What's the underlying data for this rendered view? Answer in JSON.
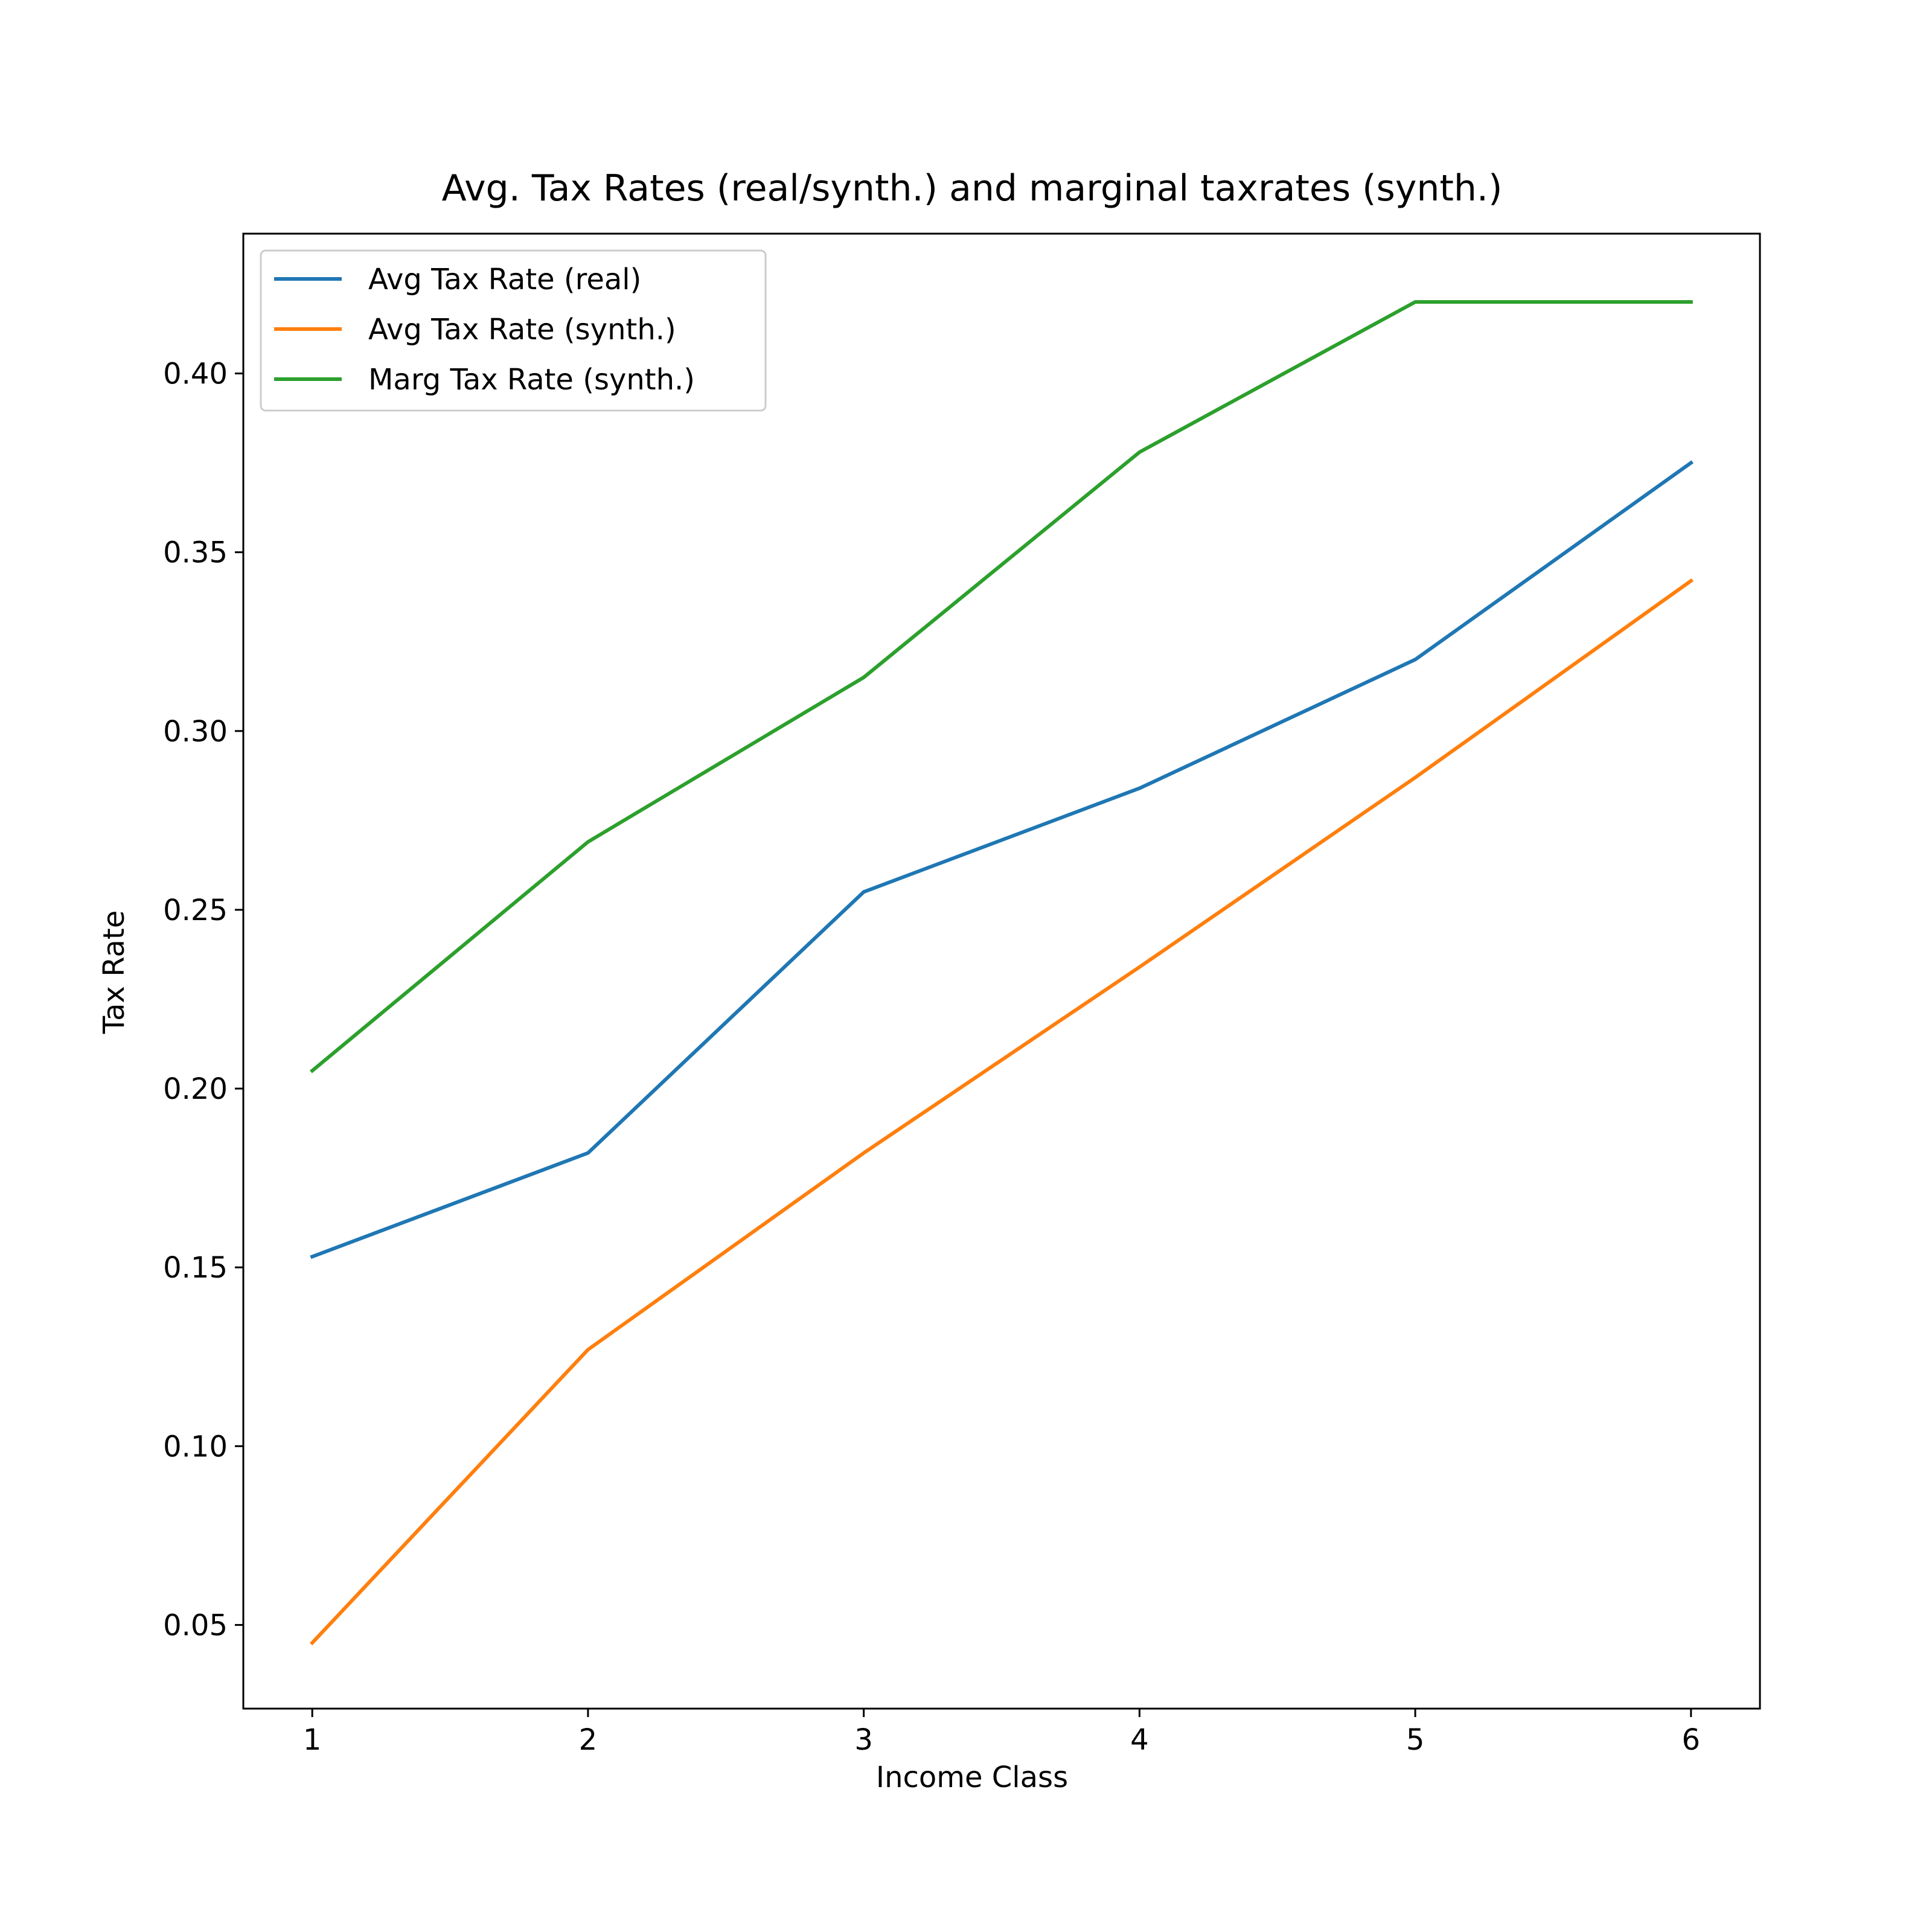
{
  "chart_data": {
    "type": "line",
    "title": "Avg. Tax Rates (real/synth.) and marginal taxrates (synth.)",
    "xlabel": "Income Class",
    "ylabel": "Tax Rate",
    "x": [
      1,
      2,
      3,
      4,
      5,
      6
    ],
    "x_ticks": [
      "1",
      "2",
      "3",
      "4",
      "5",
      "6"
    ],
    "y_ticks": [
      "0.05",
      "0.10",
      "0.15",
      "0.20",
      "0.25",
      "0.30",
      "0.35",
      "0.40"
    ],
    "xlim": [
      0.75,
      6.25
    ],
    "ylim": [
      0.0266,
      0.4391
    ],
    "grid": false,
    "legend_position": "upper-left",
    "series": [
      {
        "name": "Avg Tax Rate (real)",
        "color": "#1f77b4",
        "values": [
          0.153,
          0.182,
          0.255,
          0.284,
          0.32,
          0.375
        ]
      },
      {
        "name": "Avg Tax Rate (synth.)",
        "color": "#ff7f0e",
        "values": [
          0.045,
          0.127,
          0.182,
          0.234,
          0.287,
          0.342
        ]
      },
      {
        "name": "Marg Tax Rate (synth.)",
        "color": "#2ca02c",
        "values": [
          0.205,
          0.269,
          0.315,
          0.378,
          0.42,
          0.42
        ]
      }
    ]
  }
}
